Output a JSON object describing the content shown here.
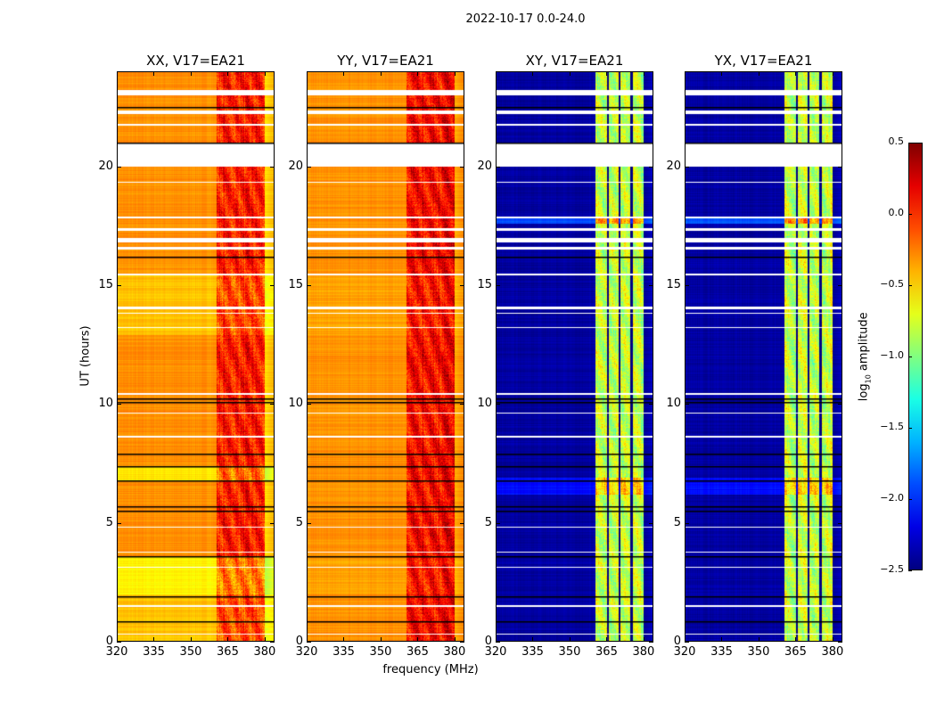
{
  "chart_data": {
    "type": "heatmap",
    "title": "2022-10-17 0.0-24.0",
    "xlabel": "frequency (MHz)",
    "ylabel": "UT (hours)",
    "xlim": [
      320,
      384
    ],
    "ylim": [
      0,
      24
    ],
    "xticks": [
      "320",
      "335",
      "350",
      "365",
      "380"
    ],
    "xtick_values": [
      320,
      335,
      350,
      365,
      380
    ],
    "yticks": [
      "0",
      "5",
      "10",
      "15",
      "20"
    ],
    "ytick_values": [
      0,
      5,
      10,
      15,
      20
    ],
    "colorbar": {
      "label_main": "log",
      "label_sub": "10",
      "label_rest": " amplitude",
      "range": [
        -2.5,
        0.5
      ],
      "ticks": [
        "0.5",
        "0.0",
        "−0.5",
        "−1.0",
        "−1.5",
        "−2.0",
        "−2.5"
      ],
      "tick_values": [
        0.5,
        0.0,
        -0.5,
        -1.0,
        -1.5,
        -2.0,
        -2.5
      ],
      "colormap": "jet"
    },
    "flagged_white_hours": [
      [
        20.0,
        20.95
      ],
      [
        23.0,
        23.2
      ],
      [
        22.2,
        22.35
      ],
      [
        21.7,
        21.8
      ],
      [
        17.3,
        17.4
      ],
      [
        16.8,
        17.0
      ],
      [
        16.5,
        16.6
      ],
      [
        15.4,
        15.5
      ],
      [
        14.0,
        14.1
      ],
      [
        13.8,
        13.85
      ],
      [
        13.2,
        13.25
      ],
      [
        10.4,
        10.45
      ],
      [
        9.6,
        9.65
      ],
      [
        8.6,
        8.65
      ],
      [
        4.8,
        4.85
      ],
      [
        3.75,
        3.8
      ],
      [
        3.1,
        3.15
      ],
      [
        1.45,
        1.55
      ],
      [
        0.3,
        0.35
      ],
      [
        19.3,
        19.35
      ],
      [
        17.8,
        17.9
      ]
    ],
    "black_line_hours": [
      21.0,
      10.25,
      10.1,
      7.9,
      7.4,
      6.8,
      5.7,
      5.5,
      3.6,
      1.9,
      0.85,
      22.5,
      16.2
    ],
    "panels": [
      {
        "title": "XX, V17=EA21",
        "base": -0.3,
        "band": [
          360.5,
          380,
          0.05
        ],
        "edge": -0.55,
        "stripes": [],
        "mods": [
          [
            0,
            2.0,
            -0.15
          ],
          [
            2.0,
            3.6,
            -0.3
          ],
          [
            12.9,
            15.4,
            -0.15
          ],
          [
            6.8,
            7.4,
            -0.25
          ]
        ]
      },
      {
        "title": "YY, V17=EA21",
        "base": -0.3,
        "band": [
          360.5,
          380,
          0.15
        ],
        "edge": -0.4,
        "stripes": [],
        "mods": [
          [
            2.0,
            3.6,
            -0.05
          ],
          [
            12.9,
            15.4,
            -0.05
          ]
        ]
      },
      {
        "title": "XY, V17=EA21",
        "base": -2.4,
        "band": [
          360.5,
          380,
          -0.8
        ],
        "edge": -2.45,
        "stripes": [
          365.5,
          370.2,
          375.2
        ],
        "mods": [
          [
            17.6,
            17.8,
            0.5
          ],
          [
            6.2,
            6.9,
            0.3
          ]
        ]
      },
      {
        "title": "YX, V17=EA21",
        "base": -2.4,
        "band": [
          360.5,
          380,
          -0.8
        ],
        "edge": -2.45,
        "stripes": [
          365.5,
          370.2,
          375.2
        ],
        "mods": [
          [
            17.6,
            17.8,
            0.5
          ],
          [
            6.2,
            6.9,
            0.3
          ]
        ]
      }
    ]
  }
}
